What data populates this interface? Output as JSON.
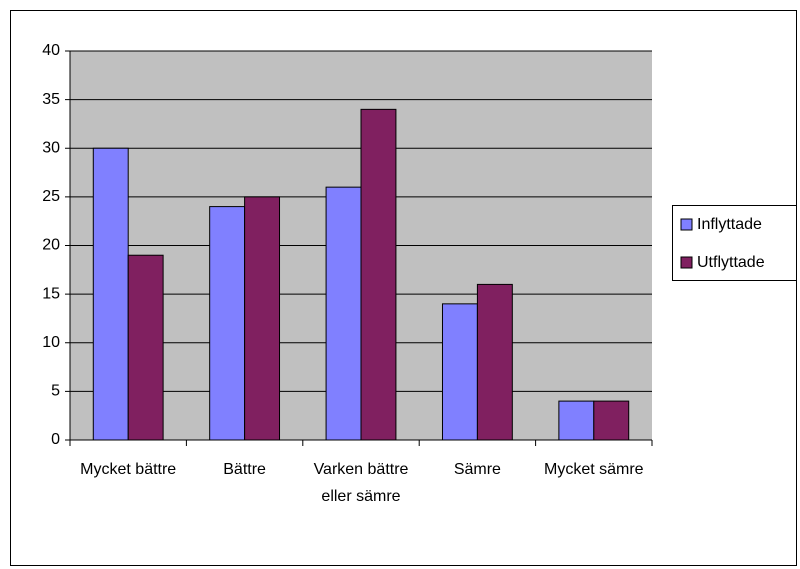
{
  "chart_data": {
    "type": "bar",
    "categories": [
      "Mycket bättre",
      "Bättre",
      "Varken bättre eller sämre",
      "Sämre",
      "Mycket sämre"
    ],
    "series": [
      {
        "name": "Inflyttade",
        "color": "#8080ff",
        "values": [
          30,
          24,
          26,
          14,
          4
        ]
      },
      {
        "name": "Utflyttade",
        "color": "#802060",
        "values": [
          19,
          25,
          34,
          16,
          4
        ]
      }
    ],
    "ylim": [
      0,
      40
    ],
    "yticks": [
      0,
      5,
      10,
      15,
      20,
      25,
      30,
      35,
      40
    ],
    "grid": true,
    "legend": "right"
  }
}
